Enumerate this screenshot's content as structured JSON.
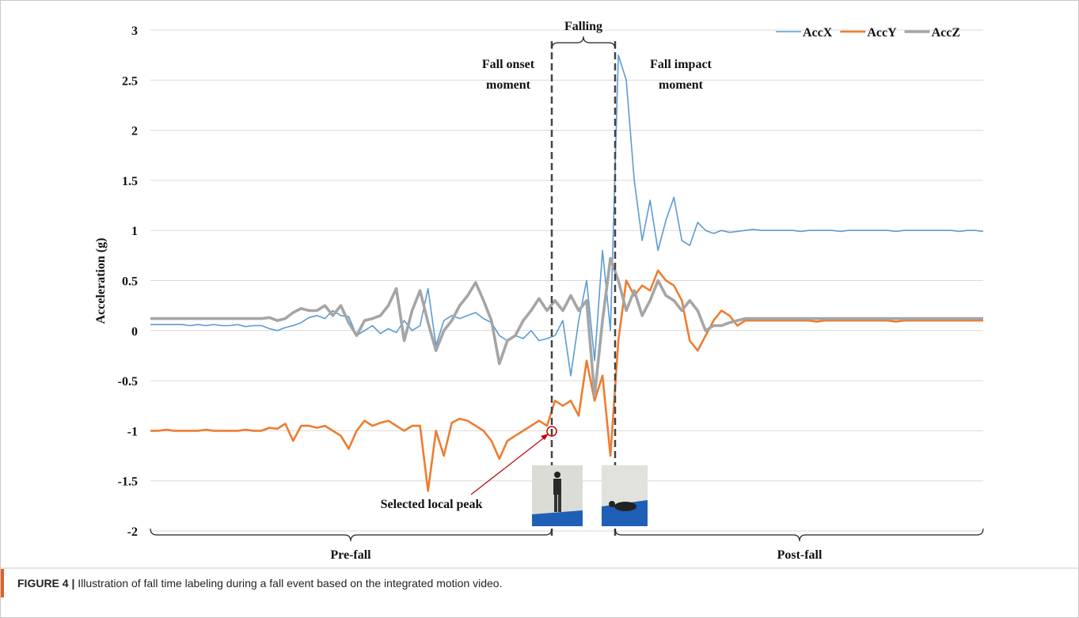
{
  "chart_data": {
    "type": "line",
    "y_label": "Acceleration (g)",
    "ylim": [
      -2,
      3
    ],
    "yticks": [
      3,
      2.5,
      2,
      1.5,
      1,
      0.5,
      0,
      -0.5,
      -1,
      -1.5,
      -2
    ],
    "grid": true,
    "legend": "top-right",
    "series": [
      {
        "name": "AccX",
        "color": "#5b9bd5",
        "values": [
          0.06,
          0.06,
          0.06,
          0.06,
          0.06,
          0.05,
          0.06,
          0.05,
          0.06,
          0.05,
          0.05,
          0.06,
          0.04,
          0.05,
          0.05,
          0.02,
          0.0,
          0.03,
          0.05,
          0.08,
          0.13,
          0.15,
          0.12,
          0.2,
          0.15,
          0.14,
          -0.05,
          0.0,
          0.05,
          -0.03,
          0.02,
          -0.02,
          0.1,
          0.0,
          0.05,
          0.42,
          -0.15,
          0.1,
          0.15,
          0.12,
          0.15,
          0.18,
          0.12,
          0.08,
          -0.05,
          -0.1,
          -0.05,
          -0.08,
          0.0,
          -0.1,
          -0.08,
          -0.05,
          0.1,
          -0.45,
          0.1,
          0.5,
          -0.3,
          0.8,
          0.0,
          2.75,
          2.5,
          1.5,
          0.9,
          1.3,
          0.8,
          1.1,
          1.33,
          0.9,
          0.85,
          1.08,
          1.0,
          0.97,
          1.0,
          0.98,
          0.99,
          1.0,
          1.01,
          1.0,
          1.0,
          1.0,
          1.0,
          1.0,
          0.99,
          1.0,
          1.0,
          1.0,
          1.0,
          0.99,
          1.0,
          1.0,
          1.0,
          1.0,
          1.0,
          1.0,
          0.99,
          1.0,
          1.0,
          1.0,
          1.0,
          1.0,
          1.0,
          1.0,
          0.99,
          1.0,
          1.0,
          0.99
        ]
      },
      {
        "name": "AccY",
        "color": "#ed7d31",
        "values": [
          -1.0,
          -1.0,
          -0.99,
          -1.0,
          -1.0,
          -1.0,
          -1.0,
          -0.99,
          -1.0,
          -1.0,
          -1.0,
          -1.0,
          -0.99,
          -1.0,
          -1.0,
          -0.97,
          -0.98,
          -0.93,
          -1.1,
          -0.95,
          -0.95,
          -0.97,
          -0.95,
          -1.0,
          -1.05,
          -1.18,
          -1.0,
          -0.9,
          -0.95,
          -0.92,
          -0.9,
          -0.95,
          -1.0,
          -0.95,
          -0.95,
          -1.6,
          -1.0,
          -1.25,
          -0.92,
          -0.88,
          -0.9,
          -0.95,
          -1.0,
          -1.1,
          -1.28,
          -1.1,
          -1.05,
          -1.0,
          -0.95,
          -0.9,
          -0.95,
          -0.7,
          -0.75,
          -0.7,
          -0.85,
          -0.3,
          -0.7,
          -0.45,
          -1.25,
          -0.1,
          0.5,
          0.35,
          0.45,
          0.4,
          0.6,
          0.5,
          0.45,
          0.3,
          -0.1,
          -0.2,
          -0.05,
          0.1,
          0.2,
          0.15,
          0.05,
          0.1,
          0.1,
          0.1,
          0.1,
          0.1,
          0.1,
          0.1,
          0.1,
          0.1,
          0.09,
          0.1,
          0.1,
          0.1,
          0.1,
          0.1,
          0.1,
          0.1,
          0.1,
          0.1,
          0.09,
          0.1,
          0.1,
          0.1,
          0.1,
          0.1,
          0.1,
          0.1,
          0.1,
          0.1,
          0.1,
          0.1
        ]
      },
      {
        "name": "AccZ",
        "color": "#a5a5a5",
        "values": [
          0.12,
          0.12,
          0.12,
          0.12,
          0.12,
          0.12,
          0.12,
          0.12,
          0.12,
          0.12,
          0.12,
          0.12,
          0.12,
          0.12,
          0.12,
          0.13,
          0.1,
          0.12,
          0.18,
          0.22,
          0.2,
          0.2,
          0.25,
          0.15,
          0.25,
          0.08,
          -0.05,
          0.1,
          0.12,
          0.15,
          0.25,
          0.42,
          -0.1,
          0.2,
          0.4,
          0.08,
          -0.2,
          0.0,
          0.1,
          0.25,
          0.35,
          0.48,
          0.3,
          0.1,
          -0.33,
          -0.1,
          -0.05,
          0.1,
          0.2,
          0.32,
          0.2,
          0.3,
          0.2,
          0.35,
          0.2,
          0.3,
          -0.65,
          0.1,
          0.72,
          0.5,
          0.2,
          0.4,
          0.15,
          0.3,
          0.5,
          0.35,
          0.3,
          0.2,
          0.3,
          0.2,
          0.0,
          0.05,
          0.05,
          0.08,
          0.1,
          0.12,
          0.12,
          0.12,
          0.12,
          0.12,
          0.12,
          0.12,
          0.12,
          0.12,
          0.12,
          0.12,
          0.12,
          0.12,
          0.12,
          0.12,
          0.12,
          0.12,
          0.12,
          0.12,
          0.12,
          0.12,
          0.12,
          0.12,
          0.12,
          0.12,
          0.12,
          0.12,
          0.12,
          0.12,
          0.12,
          0.12
        ]
      }
    ],
    "annotations": {
      "falling": "Falling",
      "fall_onset": [
        "Fall onset",
        "moment"
      ],
      "fall_impact": [
        "Fall impact",
        "moment"
      ],
      "selected_peak": "Selected local peak",
      "pre_fall": "Pre-fall",
      "post_fall": "Post-fall"
    }
  },
  "caption": {
    "label": "FIGURE 4 |",
    "text": "Illustration of fall time labeling during a fall event based on the integrated motion video."
  }
}
